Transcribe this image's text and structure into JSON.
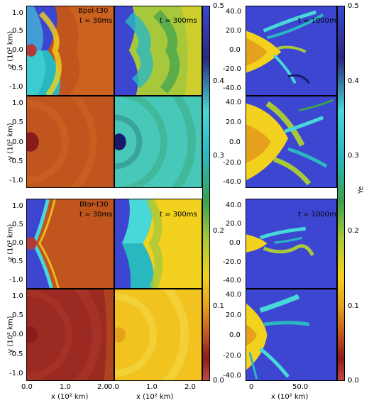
{
  "left_block": {
    "top": {
      "model_label": "Bpol-t30",
      "time_left": "t = 30ms",
      "time_right": "t = 300ms",
      "zlabel": "z (10² km)",
      "ylabel": "y (10² km)"
    },
    "bottom": {
      "model_label": "Btor-t30",
      "time_left": "t = 30ms",
      "time_right": "t = 300ms",
      "zlabel": "z (10² km)",
      "ylabel": "y (10² km)"
    },
    "y_ticks": [
      "1.0",
      "0.5",
      "0.0",
      "-0.5",
      "-1.0"
    ],
    "x_ticks_left": [
      "0.0",
      "1.0",
      "2.0"
    ],
    "x_ticks_right": [
      "0.0",
      "1.0",
      "2.0"
    ],
    "xlabel_left": "x (10² km)",
    "xlabel_right": "x (10² km)"
  },
  "colorbar_left": {
    "ticks": [
      "0.5",
      "0.4",
      "0.3",
      "0.2",
      "0.1",
      "0.0"
    ]
  },
  "right_block": {
    "time_top": "t = 1000ms",
    "time_bottom": "t = 1000ms",
    "y_ticks": [
      "40.0",
      "20.0",
      "0.0",
      "-20.0",
      "-40.0"
    ],
    "x_ticks": [
      "0",
      "50.0"
    ],
    "xlabel": "x (10² km)"
  },
  "colorbar_right": {
    "ticks": [
      "0.5",
      "0.4",
      "0.3",
      "0.2",
      "0.1",
      "0.0"
    ],
    "label": "Ye"
  },
  "colors": {
    "c00": "#b23a3a",
    "c01": "#8a1c1c",
    "c02": "#c0551e",
    "c03": "#e6a21c",
    "c04": "#f2d21e",
    "c05": "#a8c83c",
    "c06": "#3aa050",
    "c07": "#2ab8c0",
    "c08": "#48d8d8",
    "c09": "#3c46d0",
    "c10": "#1a1a6a"
  }
}
